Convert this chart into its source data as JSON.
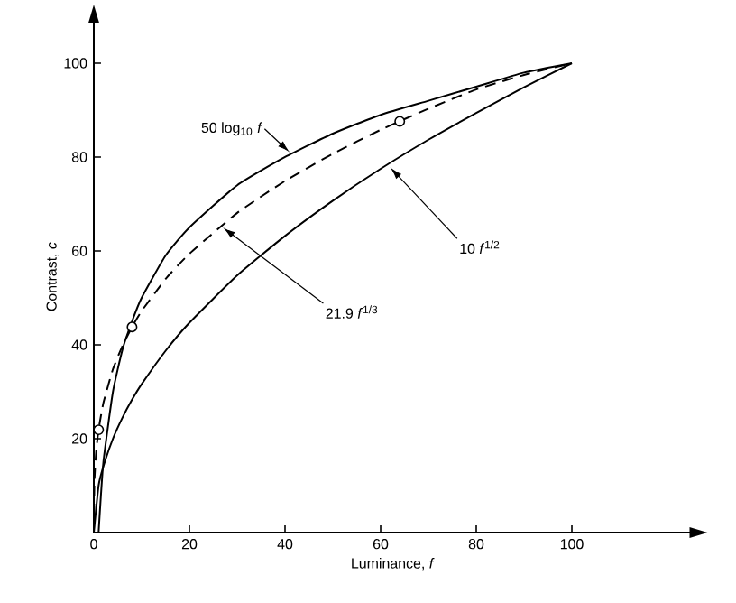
{
  "chart_data": {
    "type": "line",
    "xlabel": "Luminance, *f*",
    "ylabel": "Contrast, *c*",
    "xlim": [
      0,
      125
    ],
    "ylim": [
      0,
      109
    ],
    "xticks": [
      0,
      20,
      40,
      60,
      80,
      100
    ],
    "yticks": [
      20,
      40,
      60,
      80,
      100
    ],
    "marker": "none",
    "series": [
      {
        "color": "#000000",
        "line_style": "solid",
        "x": [
          1,
          2,
          4,
          6,
          8,
          10,
          15,
          20,
          30,
          40,
          50,
          60,
          70,
          80,
          90,
          100
        ],
        "values": [
          0,
          15,
          30,
          39,
          45,
          50,
          59,
          65,
          74,
          80,
          85,
          89,
          92,
          95,
          98,
          100
        ]
      },
      {
        "color": "#000000",
        "line_style": "solid",
        "x": [
          0,
          1,
          2,
          4,
          6,
          8,
          10,
          15,
          20,
          30,
          40,
          50,
          60,
          70,
          80,
          90,
          100
        ],
        "values": [
          0,
          10,
          14.1,
          20,
          24.5,
          28.3,
          31.6,
          38.7,
          44.7,
          54.8,
          63.2,
          70.7,
          77.5,
          83.7,
          89.4,
          94.9,
          100
        ]
      },
      {
        "color": "#000000",
        "line_style": "dashed",
        "x": [
          0,
          0.125,
          0.5,
          1,
          2,
          4,
          6,
          8,
          10,
          15,
          20,
          30,
          40,
          50,
          60,
          70,
          80,
          90,
          100
        ],
        "values": [
          0,
          11,
          17.4,
          21.9,
          27.6,
          34.8,
          39.8,
          43.8,
          47.2,
          54.0,
          59.4,
          68.1,
          74.9,
          80.7,
          85.8,
          90.3,
          94.4,
          97.5,
          100
        ]
      },
      {
        "type": "scatter",
        "marker": "circle",
        "color": "#000000",
        "x": [
          1,
          8,
          64
        ],
        "values": [
          21.9,
          43.8,
          87.6
        ]
      }
    ],
    "annotations": [
      {
        "text": "50 log$_{10}$ *f*",
        "x": 41,
        "y": 81
      },
      {
        "text": "10 *f*$^{1/2}$",
        "x": 62,
        "y": 77.8
      },
      {
        "text": "21.9 *f*$^{1/3}$",
        "x": 27,
        "y": 65
      }
    ]
  }
}
